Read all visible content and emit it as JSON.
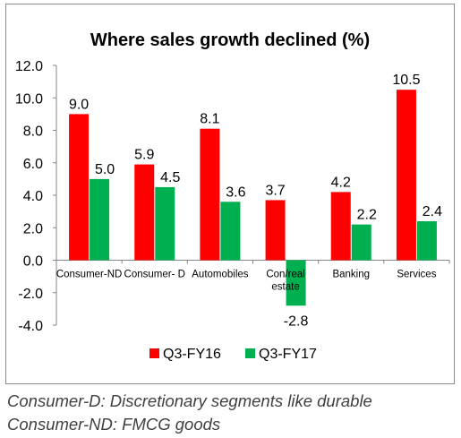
{
  "chart_data": {
    "type": "bar",
    "title": "Where sales growth declined (%)",
    "categories": [
      "Consumer-ND",
      "Consumer- D",
      "Automobiles",
      "Con/real estate",
      "Banking",
      "Services"
    ],
    "category_lines": [
      [
        "Consumer-ND"
      ],
      [
        "Consumer- D"
      ],
      [
        "Automobiles"
      ],
      [
        "Con/real",
        "estate"
      ],
      [
        "Banking"
      ],
      [
        "Services"
      ]
    ],
    "series": [
      {
        "name": "Q3-FY16",
        "color": "#ff0000",
        "values": [
          9.0,
          5.9,
          8.1,
          3.7,
          4.2,
          10.5
        ]
      },
      {
        "name": "Q3-FY17",
        "color": "#00b050",
        "values": [
          5.0,
          4.5,
          3.6,
          -2.8,
          2.2,
          2.4
        ]
      }
    ],
    "ylim": [
      -4.0,
      12.0
    ],
    "yticks": [
      "12.0",
      "10.0",
      "8.0",
      "6.0",
      "4.0",
      "2.0",
      "0.0",
      "-2.0",
      "-4.0"
    ],
    "ytick_values": [
      12,
      10,
      8,
      6,
      4,
      2,
      0,
      -2,
      -4
    ],
    "xlabel": "",
    "ylabel": "",
    "grid": false,
    "legend_position": "bottom"
  },
  "footnotes": [
    "Consumer-D: Discretionary segments like durable",
    "Consumer-ND: FMCG goods"
  ]
}
